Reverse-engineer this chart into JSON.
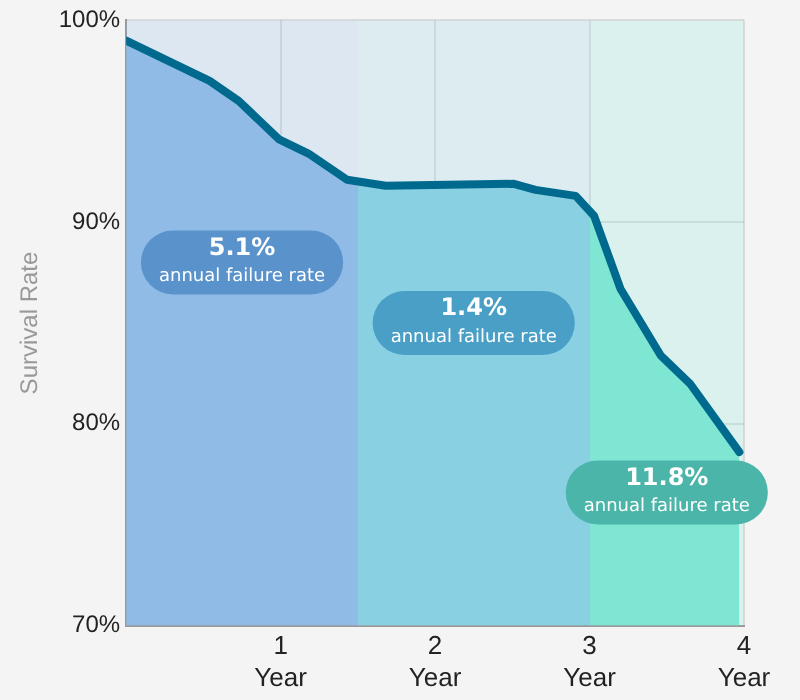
{
  "chart_data": {
    "type": "area",
    "ylabel": "Survival Rate",
    "x": [
      0,
      0.54,
      0.73,
      0.99,
      1.18,
      1.43,
      1.68,
      2.51,
      2.65,
      2.91,
      3.03,
      3.2,
      3.46,
      3.65,
      3.97
    ],
    "series": [
      {
        "color": "#006a8e",
        "values": [
          99.0,
          97.0,
          96.0,
          94.1,
          93.4,
          92.1,
          91.8,
          91.9,
          91.6,
          91.3,
          90.3,
          86.7,
          83.4,
          82.0,
          78.6
        ]
      }
    ],
    "xlim": [
      0,
      4
    ],
    "xticks": [
      {
        "value": 1,
        "label": "1\nYear"
      },
      {
        "value": 2,
        "label": "2\nYear"
      },
      {
        "value": 3,
        "label": "3\nYear"
      },
      {
        "value": 4,
        "label": "4\nYear"
      }
    ],
    "ylim": [
      70,
      100
    ],
    "yticks": [
      {
        "value": 70,
        "label": "70%"
      },
      {
        "value": 80,
        "label": "80%"
      },
      {
        "value": 90,
        "label": "90%"
      },
      {
        "value": 100,
        "label": "100%"
      }
    ],
    "bands": [
      {
        "axis": "x",
        "from": 0,
        "to": 1.5,
        "label": "5.1%\nannual failure rate",
        "color": "#8fbbe6"
      },
      {
        "axis": "x",
        "from": 1.5,
        "to": 3,
        "label": "1.4%\nannual failure rate",
        "color": "#88d0e2"
      },
      {
        "axis": "x",
        "from": 3,
        "to": 4,
        "label": "11.8%\nannual failure rate",
        "color": "#7fe6d4"
      }
    ],
    "grid": true,
    "legend": false,
    "marker": "none",
    "line_style": "solid"
  }
}
